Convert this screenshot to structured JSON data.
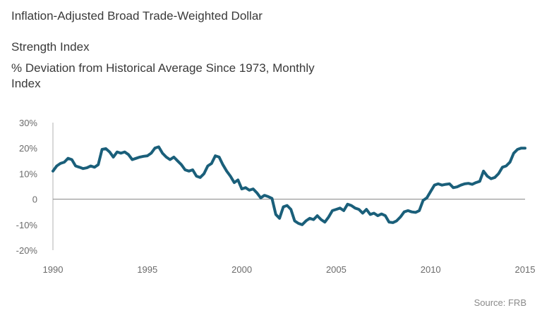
{
  "header": {
    "title": "Inflation-Adjusted Broad Trade-Weighted Dollar",
    "subtitle": "Strength Index",
    "note": "% Deviation from Historical Average Since 1973, Monthly",
    "units": "Index"
  },
  "source": "Source: FRB",
  "colors": {
    "line": "#1a5f7a",
    "axis": "#b0b0b0",
    "zero": "#9a9a9a"
  },
  "chart_data": {
    "type": "line",
    "title": "Inflation-Adjusted Broad Trade-Weighted Dollar",
    "ylabel": "",
    "xlabel": "",
    "ylim": [
      -20,
      30
    ],
    "yticks": [
      30,
      20,
      10,
      0,
      -10,
      -20
    ],
    "ytick_labels": [
      "30%",
      "20%",
      "10%",
      "0",
      "-10%",
      "-20%"
    ],
    "xlim": [
      1990,
      2015
    ],
    "xticks": [
      1990,
      1995,
      2000,
      2005,
      2010,
      2015
    ],
    "xtick_labels": [
      "1990",
      "1995",
      "2000",
      "2005",
      "2010",
      "2015"
    ],
    "grid": false,
    "series": [
      {
        "values": [
          [
            1990.0,
            11
          ],
          [
            1990.2,
            13
          ],
          [
            1990.4,
            14
          ],
          [
            1990.6,
            14.5
          ],
          [
            1990.8,
            16
          ],
          [
            1991.0,
            15.5
          ],
          [
            1991.2,
            13
          ],
          [
            1991.4,
            12.5
          ],
          [
            1991.6,
            12
          ],
          [
            1991.8,
            12.3
          ],
          [
            1992.0,
            13
          ],
          [
            1992.2,
            12.5
          ],
          [
            1992.4,
            13.5
          ],
          [
            1992.6,
            19.5
          ],
          [
            1992.8,
            19.8
          ],
          [
            1993.0,
            18.5
          ],
          [
            1993.2,
            16.5
          ],
          [
            1993.4,
            18.5
          ],
          [
            1993.6,
            18
          ],
          [
            1993.8,
            18.5
          ],
          [
            1994.0,
            17.5
          ],
          [
            1994.2,
            15.5
          ],
          [
            1994.4,
            16
          ],
          [
            1994.6,
            16.5
          ],
          [
            1994.8,
            16.8
          ],
          [
            1995.0,
            17
          ],
          [
            1995.2,
            18
          ],
          [
            1995.4,
            20
          ],
          [
            1995.6,
            20.5
          ],
          [
            1995.8,
            18
          ],
          [
            1996.0,
            16.5
          ],
          [
            1996.2,
            15.5
          ],
          [
            1996.4,
            16.5
          ],
          [
            1996.6,
            15
          ],
          [
            1996.8,
            13.5
          ],
          [
            1997.0,
            11.5
          ],
          [
            1997.2,
            11
          ],
          [
            1997.4,
            11.5
          ],
          [
            1997.6,
            9
          ],
          [
            1997.8,
            8.5
          ],
          [
            1998.0,
            10
          ],
          [
            1998.2,
            13
          ],
          [
            1998.4,
            14
          ],
          [
            1998.6,
            17
          ],
          [
            1998.8,
            16.5
          ],
          [
            1999.0,
            13.5
          ],
          [
            1999.2,
            11
          ],
          [
            1999.4,
            9
          ],
          [
            1999.6,
            6.5
          ],
          [
            1999.8,
            7.5
          ],
          [
            2000.0,
            4
          ],
          [
            2000.2,
            4.5
          ],
          [
            2000.4,
            3.5
          ],
          [
            2000.6,
            4
          ],
          [
            2000.8,
            2.5
          ],
          [
            2001.0,
            0.5
          ],
          [
            2001.2,
            1.5
          ],
          [
            2001.4,
            1
          ],
          [
            2001.6,
            0.3
          ],
          [
            2001.8,
            -6
          ],
          [
            2002.0,
            -7.5
          ],
          [
            2002.2,
            -3
          ],
          [
            2002.4,
            -2.5
          ],
          [
            2002.6,
            -4
          ],
          [
            2002.8,
            -8.5
          ],
          [
            2003.0,
            -9.5
          ],
          [
            2003.2,
            -10
          ],
          [
            2003.4,
            -8.5
          ],
          [
            2003.6,
            -7.5
          ],
          [
            2003.8,
            -8
          ],
          [
            2004.0,
            -6.5
          ],
          [
            2004.2,
            -8
          ],
          [
            2004.4,
            -9
          ],
          [
            2004.6,
            -7
          ],
          [
            2004.8,
            -4.5
          ],
          [
            2005.0,
            -4
          ],
          [
            2005.2,
            -3.5
          ],
          [
            2005.4,
            -4.5
          ],
          [
            2005.6,
            -2
          ],
          [
            2005.8,
            -2.5
          ],
          [
            2006.0,
            -3.5
          ],
          [
            2006.2,
            -4
          ],
          [
            2006.4,
            -5.5
          ],
          [
            2006.6,
            -4
          ],
          [
            2006.8,
            -6
          ],
          [
            2007.0,
            -5.5
          ],
          [
            2007.2,
            -6.5
          ],
          [
            2007.4,
            -5.8
          ],
          [
            2007.6,
            -6.5
          ],
          [
            2007.8,
            -9
          ],
          [
            2008.0,
            -9.2
          ],
          [
            2008.2,
            -8.5
          ],
          [
            2008.4,
            -7
          ],
          [
            2008.6,
            -5
          ],
          [
            2008.8,
            -4.5
          ],
          [
            2009.0,
            -5
          ],
          [
            2009.2,
            -5.2
          ],
          [
            2009.4,
            -4.5
          ],
          [
            2009.6,
            -0.5
          ],
          [
            2009.8,
            0.5
          ],
          [
            2010.0,
            3
          ],
          [
            2010.2,
            5.5
          ],
          [
            2010.4,
            6
          ],
          [
            2010.6,
            5.5
          ],
          [
            2010.8,
            5.8
          ],
          [
            2011.0,
            6
          ],
          [
            2011.2,
            4.5
          ],
          [
            2011.4,
            4.8
          ],
          [
            2011.6,
            5.5
          ],
          [
            2011.8,
            6
          ],
          [
            2012.0,
            6.2
          ],
          [
            2012.2,
            5.8
          ],
          [
            2012.4,
            6.5
          ],
          [
            2012.6,
            7
          ],
          [
            2012.8,
            11
          ],
          [
            2013.0,
            9
          ],
          [
            2013.2,
            8
          ],
          [
            2013.4,
            8.5
          ],
          [
            2013.6,
            10
          ],
          [
            2013.8,
            12.5
          ],
          [
            2014.0,
            13
          ],
          [
            2014.2,
            14.5
          ],
          [
            2014.4,
            18
          ],
          [
            2014.6,
            19.5
          ],
          [
            2014.8,
            20
          ],
          [
            2015.0,
            20
          ]
        ]
      }
    ]
  }
}
